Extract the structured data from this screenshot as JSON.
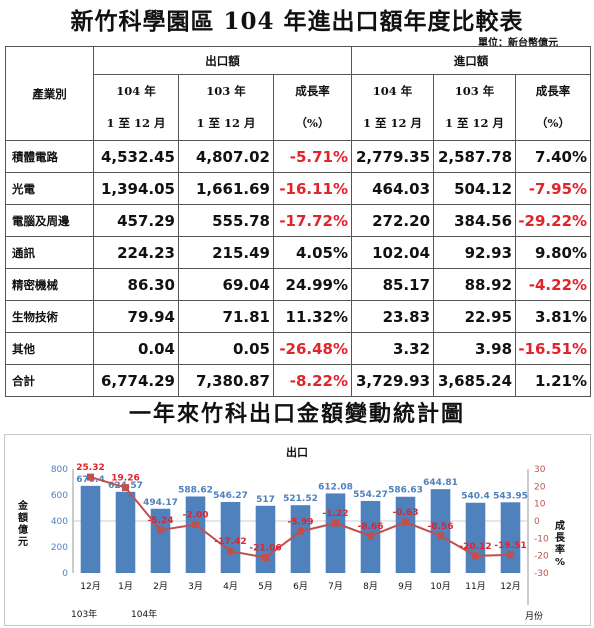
{
  "title": "新竹科學園區 104 年進出口額年度比較表",
  "unit": "單位：新台幣億元",
  "table": {
    "industry_header": "產業別",
    "export_header": "出口額",
    "import_header": "進口額",
    "col_year104": "104 年",
    "col_year103": "103 年",
    "col_growth": "成長率",
    "col_range": "1 至 12 月",
    "col_pct": "（%）",
    "rows": [
      {
        "name": "積體電路",
        "e104": "4,532.45",
        "e103": "4,807.02",
        "eg": "-5.71%",
        "i104": "2,779.35",
        "i103": "2,587.78",
        "ig": "7.40%"
      },
      {
        "name": "光電",
        "e104": "1,394.05",
        "e103": "1,661.69",
        "eg": "-16.11%",
        "i104": "464.03",
        "i103": "504.12",
        "ig": "-7.95%"
      },
      {
        "name": "電腦及周邊",
        "e104": "457.29",
        "e103": "555.78",
        "eg": "-17.72%",
        "i104": "272.20",
        "i103": "384.56",
        "ig": "-29.22%"
      },
      {
        "name": "通訊",
        "e104": "224.23",
        "e103": "215.49",
        "eg": "4.05%",
        "i104": "102.04",
        "i103": "92.93",
        "ig": "9.80%"
      },
      {
        "name": "精密機械",
        "e104": "86.30",
        "e103": "69.04",
        "eg": "24.99%",
        "i104": "85.17",
        "i103": "88.92",
        "ig": "-4.22%"
      },
      {
        "name": "生物技術",
        "e104": "79.94",
        "e103": "71.81",
        "eg": "11.32%",
        "i104": "23.83",
        "i103": "22.95",
        "ig": "3.81%"
      },
      {
        "name": "其他",
        "e104": "0.04",
        "e103": "0.05",
        "eg": "-26.48%",
        "i104": "3.32",
        "i103": "3.98",
        "ig": "-16.51%"
      },
      {
        "name": "合計",
        "e104": "6,774.29",
        "e103": "7,380.87",
        "eg": "-8.22%",
        "i104": "3,729.93",
        "i103": "3,685.24",
        "ig": "1.21%"
      }
    ]
  },
  "subtitle": "一年來竹科出口金額變動統計圖",
  "colors": {
    "bar": "#4f81bd",
    "line": "#c0504d",
    "label_red": "#e0242c"
  },
  "chart_data": {
    "type": "bar",
    "title": "出口",
    "categories": [
      "12月",
      "1月",
      "2月",
      "3月",
      "4月",
      "5月",
      "6月",
      "7月",
      "8月",
      "9月",
      "10月",
      "11月",
      "12月"
    ],
    "series": [
      {
        "type": "bar",
        "values": [
          670.4,
          624.57,
          494.17,
          588.62,
          546.27,
          517,
          521.52,
          612.08,
          554.27,
          586.63,
          644.81,
          540.4,
          543.95
        ],
        "labels": [
          "670.4",
          "624.57",
          "494.17",
          "588.62",
          "546.27",
          "517",
          "521.52",
          "612.08",
          "554.27",
          "586.63",
          "644.81",
          "540.4",
          "543.95"
        ]
      },
      {
        "type": "line",
        "values": [
          25.32,
          19.26,
          -5.24,
          -2.0,
          -17.42,
          -21.06,
          -5.99,
          -1.22,
          -8.66,
          -0.63,
          -8.56,
          -20.12,
          -19.51
        ],
        "labels": [
          "25.32",
          "19.26",
          "-5.24",
          "-2.00",
          "-17.42",
          "-21.06",
          "-5.99",
          "-1.22",
          "-8.66",
          "-0.63",
          "-8.56",
          "-20.12",
          "-19.51"
        ]
      }
    ],
    "y_left": {
      "label": "金額億元",
      "ticks": [
        "0",
        "200",
        "400",
        "600",
        "800"
      ],
      "range": [
        0,
        800
      ]
    },
    "y_right": {
      "label": "成長率%",
      "ticks": [
        "-30",
        "-20",
        "-10",
        "0",
        "10",
        "20",
        "30"
      ],
      "range": [
        -30,
        30
      ]
    },
    "xlabel": "月份",
    "year_labels": [
      "103年",
      "104年"
    ]
  }
}
